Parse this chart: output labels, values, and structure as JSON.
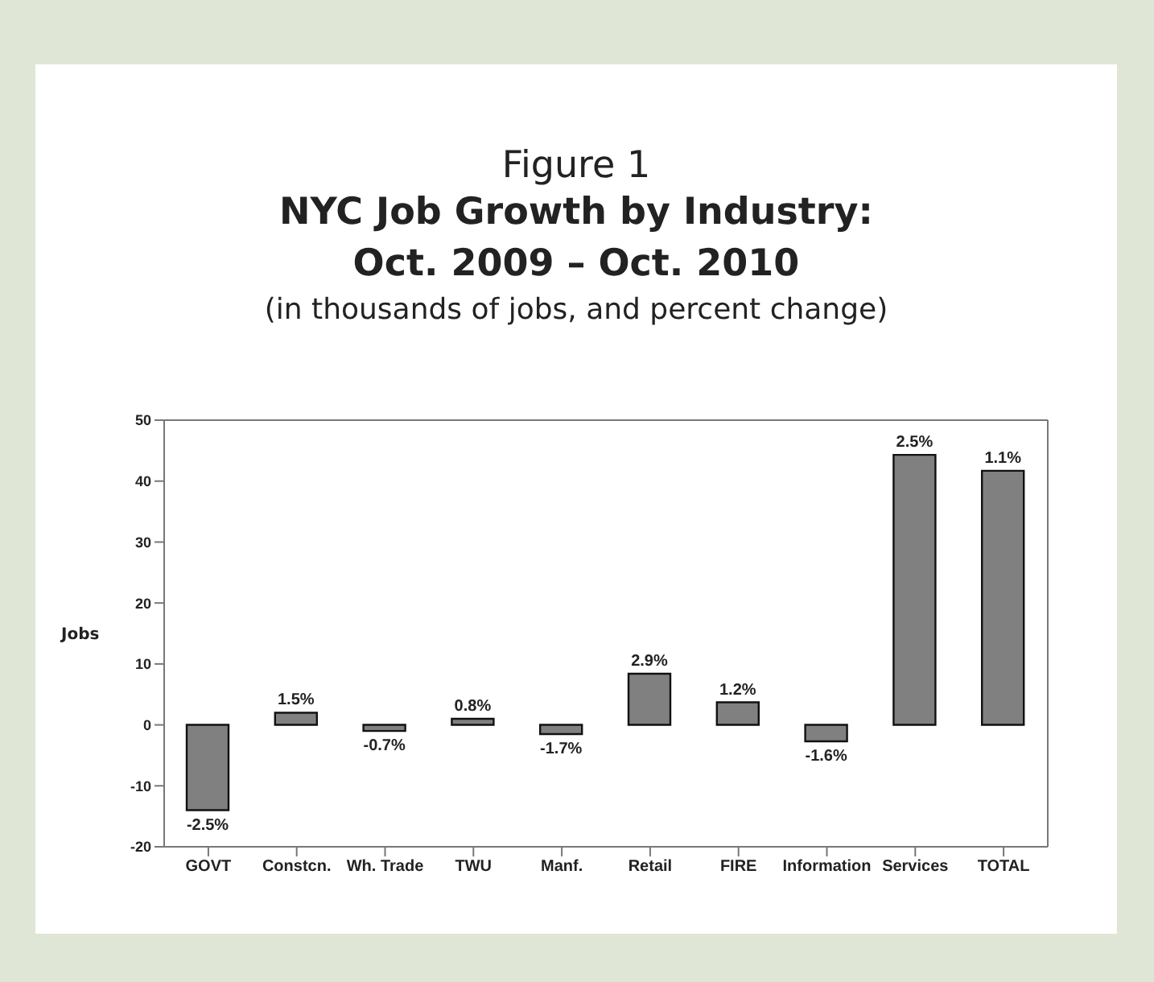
{
  "chart_data": {
    "type": "bar",
    "title": "NYC Job Growth by Industry:\nOct. 2009 – Oct. 2010",
    "subtitle": "(in thousands of jobs, and percent change)",
    "annotations": [
      "Figure 1",
      {
        "text": "-2.5%",
        "x": "GOVT",
        "y": -14
      },
      {
        "text": "1.5%",
        "x": "Constcn.",
        "y": 2
      },
      {
        "text": "-0.7%",
        "x": "Wh. Trade",
        "y": -1
      },
      {
        "text": "0.8%",
        "x": "TWU",
        "y": 1
      },
      {
        "text": "-1.7%",
        "x": "Manf.",
        "y": -1.5
      },
      {
        "text": "2.9%",
        "x": "Retail",
        "y": 8.4
      },
      {
        "text": "1.2%",
        "x": "FIRE",
        "y": 3.7
      },
      {
        "text": "-1.6%",
        "x": "Information",
        "y": -2.7
      },
      {
        "text": "2.5%",
        "x": "Services",
        "y": 44.3
      },
      {
        "text": "1.1%",
        "x": "TOTAL",
        "y": 41.7
      }
    ],
    "ylabel": "Jobs",
    "categories": [
      "GOVT",
      "Constcn.",
      "Wh. Trade",
      "TWU",
      "Manf.",
      "Retail",
      "FIRE",
      "Information",
      "Services",
      "TOTAL"
    ],
    "values": [
      -14,
      2,
      -1,
      1,
      -1.5,
      8.4,
      3.7,
      -2.7,
      44.3,
      41.7
    ],
    "color": "#808080",
    "ylim": [
      -20,
      50
    ],
    "yticks": [
      -20,
      -10,
      0,
      10,
      20,
      30,
      40,
      50
    ],
    "grid": false
  }
}
